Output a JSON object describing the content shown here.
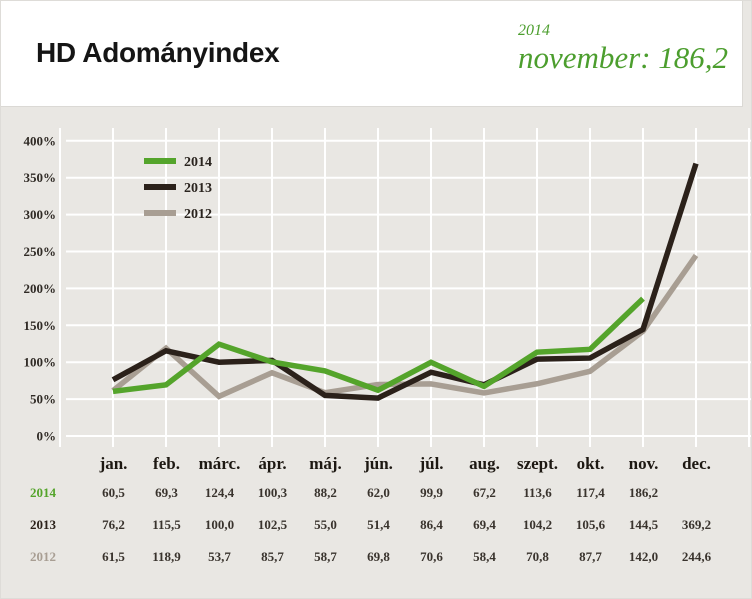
{
  "header": {
    "title": "HD Adományindex",
    "highlight_year": "2014",
    "highlight_text": "november: 186,2",
    "accent_color": "#4c9e2e"
  },
  "chart_data": {
    "type": "line",
    "title": "HD Adományindex",
    "categories": [
      "jan.",
      "feb.",
      "márc.",
      "ápr.",
      "máj.",
      "jún.",
      "júl.",
      "aug.",
      "szept.",
      "okt.",
      "nov.",
      "dec."
    ],
    "ylabel": "",
    "xlabel": "",
    "ylim": [
      0,
      400
    ],
    "ytick_step": 50,
    "ytick_suffix": "%",
    "grid": true,
    "legend_position": "top-left",
    "series": [
      {
        "name": "2014",
        "color": "#54a42b",
        "values": [
          60.5,
          69.3,
          124.4,
          100.3,
          88.2,
          62.0,
          99.9,
          67.2,
          113.6,
          117.4,
          186.2,
          null
        ]
      },
      {
        "name": "2013",
        "color": "#2b211a",
        "values": [
          76.2,
          115.5,
          100.0,
          102.5,
          55.0,
          51.4,
          86.4,
          69.4,
          104.2,
          105.6,
          144.5,
          369.2
        ]
      },
      {
        "name": "2012",
        "color": "#a89e93",
        "values": [
          61.5,
          118.9,
          53.7,
          85.7,
          58.7,
          69.8,
          70.6,
          58.4,
          70.8,
          87.7,
          142.0,
          244.6
        ]
      }
    ],
    "colors": {
      "plot_background": "#e9e7e3",
      "gridline": "#ffffff",
      "axis_text": "#2f2a25"
    }
  },
  "table": {
    "columns": [
      "jan.",
      "feb.",
      "márc.",
      "ápr.",
      "máj.",
      "jún.",
      "júl.",
      "aug.",
      "szept.",
      "okt.",
      "nov.",
      "dec."
    ],
    "rows": [
      {
        "label": "2014",
        "color": "#54a42b",
        "values": [
          "60,5",
          "69,3",
          "124,4",
          "100,3",
          "88,2",
          "62,0",
          "99,9",
          "67,2",
          "113,6",
          "117,4",
          "186,2",
          ""
        ]
      },
      {
        "label": "2013",
        "color": "#2b211a",
        "values": [
          "76,2",
          "115,5",
          "100,0",
          "102,5",
          "55,0",
          "51,4",
          "86,4",
          "69,4",
          "104,2",
          "105,6",
          "144,5",
          "369,2"
        ]
      },
      {
        "label": "2012",
        "color": "#a89e93",
        "values": [
          "61,5",
          "118,9",
          "53,7",
          "85,7",
          "58,7",
          "69,8",
          "70,6",
          "58,4",
          "70,8",
          "87,7",
          "142,0",
          "244,6"
        ]
      }
    ]
  }
}
